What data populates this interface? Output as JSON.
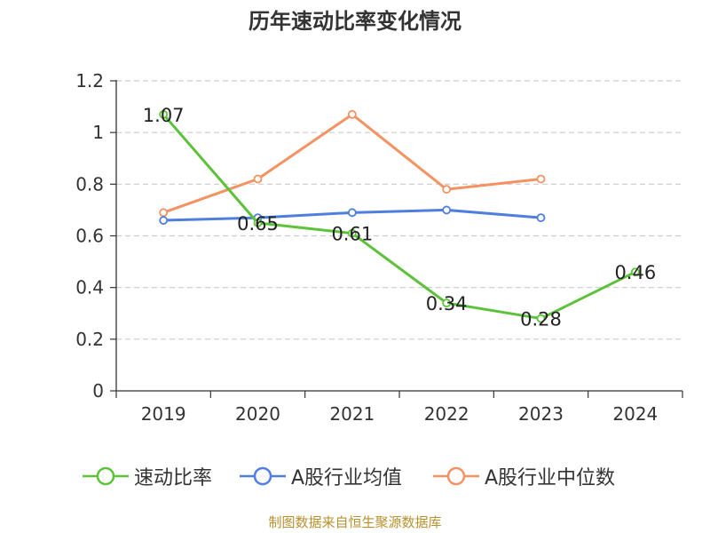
{
  "colors": {
    "speed_ratio": "#5cc23a",
    "industry_avg": "#4f7fde",
    "industry_median": "#f59262",
    "grid": "#cccccc",
    "axis": "#333333",
    "source": "#b8912f"
  },
  "source_text": "制图数据来自恒生聚源数据库",
  "chart_data": {
    "type": "line",
    "title": "历年速动比率变化情况",
    "xlabel": "",
    "ylabel": "",
    "categories": [
      "2019",
      "2020",
      "2021",
      "2022",
      "2023",
      "2024"
    ],
    "ylim": [
      0,
      1.2
    ],
    "yticks": [
      "0",
      "0.2",
      "0.4",
      "0.6",
      "0.8",
      "1",
      "1.2"
    ],
    "grid": true,
    "legend_position": "bottom",
    "series": [
      {
        "name": "速动比率",
        "color_key": "speed_ratio",
        "values": [
          1.07,
          0.65,
          0.61,
          0.34,
          0.28,
          0.46
        ],
        "labels": [
          "1.07",
          "0.65",
          "0.61",
          "0.34",
          "0.28",
          "0.46"
        ]
      },
      {
        "name": "A股行业均值",
        "color_key": "industry_avg",
        "values": [
          0.66,
          0.67,
          0.69,
          0.7,
          0.67,
          null
        ]
      },
      {
        "name": "A股行业中位数",
        "color_key": "industry_median",
        "values": [
          0.69,
          0.82,
          1.07,
          0.78,
          0.82,
          null
        ]
      }
    ]
  }
}
